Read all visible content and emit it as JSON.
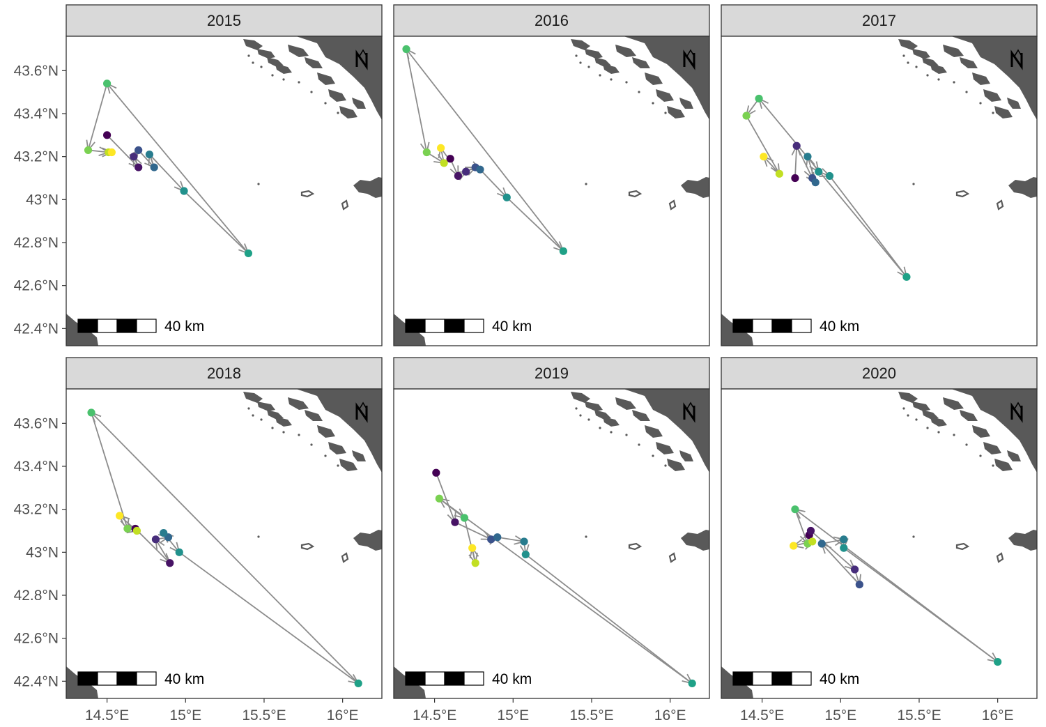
{
  "chart_data": {
    "type": "map",
    "panels": [
      {
        "year": "2015",
        "points": [
          {
            "lon": 14.5,
            "lat": 43.3,
            "color": "#440154"
          },
          {
            "lon": 14.7,
            "lat": 43.15,
            "color": "#471365"
          },
          {
            "lon": 14.67,
            "lat": 43.2,
            "color": "#472d7b"
          },
          {
            "lon": 14.7,
            "lat": 43.23,
            "color": "#3b528b"
          },
          {
            "lon": 14.8,
            "lat": 43.15,
            "color": "#31688e"
          },
          {
            "lon": 14.77,
            "lat": 43.21,
            "color": "#287c8e"
          },
          {
            "lon": 14.99,
            "lat": 43.04,
            "color": "#21918c"
          },
          {
            "lon": 15.4,
            "lat": 42.75,
            "color": "#1fa187"
          },
          {
            "lon": 14.5,
            "lat": 43.54,
            "color": "#4ac16d"
          },
          {
            "lon": 14.38,
            "lat": 43.23,
            "color": "#7ad151"
          },
          {
            "lon": 14.51,
            "lat": 43.22,
            "color": "#c2df23"
          },
          {
            "lon": 14.53,
            "lat": 43.22,
            "color": "#fde725"
          }
        ]
      },
      {
        "year": "2016",
        "points": [
          {
            "lon": 14.6,
            "lat": 43.19,
            "color": "#440154"
          },
          {
            "lon": 14.65,
            "lat": 43.11,
            "color": "#471365"
          },
          {
            "lon": 14.7,
            "lat": 43.13,
            "color": "#472d7b"
          },
          {
            "lon": 14.76,
            "lat": 43.15,
            "color": "#3b528b"
          },
          {
            "lon": 14.79,
            "lat": 43.14,
            "color": "#31688e"
          },
          {
            "lon": 14.96,
            "lat": 43.01,
            "color": "#21918c"
          },
          {
            "lon": 15.32,
            "lat": 42.76,
            "color": "#1fa187"
          },
          {
            "lon": 14.32,
            "lat": 43.7,
            "color": "#4ac16d"
          },
          {
            "lon": 14.45,
            "lat": 43.22,
            "color": "#7ad151"
          },
          {
            "lon": 14.56,
            "lat": 43.17,
            "color": "#c2df23"
          },
          {
            "lon": 14.54,
            "lat": 43.24,
            "color": "#fde725"
          }
        ]
      },
      {
        "year": "2017",
        "points": [
          {
            "lon": 14.71,
            "lat": 43.1,
            "color": "#440154"
          },
          {
            "lon": 14.72,
            "lat": 43.25,
            "color": "#472d7b"
          },
          {
            "lon": 14.82,
            "lat": 43.1,
            "color": "#3b528b"
          },
          {
            "lon": 14.84,
            "lat": 43.08,
            "color": "#31688e"
          },
          {
            "lon": 14.79,
            "lat": 43.2,
            "color": "#287c8e"
          },
          {
            "lon": 14.86,
            "lat": 43.13,
            "color": "#21918c"
          },
          {
            "lon": 14.93,
            "lat": 43.11,
            "color": "#21918c"
          },
          {
            "lon": 15.42,
            "lat": 42.64,
            "color": "#1fa187"
          },
          {
            "lon": 14.48,
            "lat": 43.47,
            "color": "#4ac16d"
          },
          {
            "lon": 14.4,
            "lat": 43.39,
            "color": "#7ad151"
          },
          {
            "lon": 14.61,
            "lat": 43.12,
            "color": "#c2df23"
          },
          {
            "lon": 14.51,
            "lat": 43.2,
            "color": "#fde725"
          }
        ]
      },
      {
        "year": "2018",
        "points": [
          {
            "lon": 14.68,
            "lat": 43.11,
            "color": "#440154"
          },
          {
            "lon": 14.9,
            "lat": 42.95,
            "color": "#471365"
          },
          {
            "lon": 14.81,
            "lat": 43.06,
            "color": "#472d7b"
          },
          {
            "lon": 14.89,
            "lat": 43.07,
            "color": "#31688e"
          },
          {
            "lon": 14.86,
            "lat": 43.09,
            "color": "#287c8e"
          },
          {
            "lon": 14.96,
            "lat": 43.0,
            "color": "#21918c"
          },
          {
            "lon": 16.1,
            "lat": 42.39,
            "color": "#1fa187"
          },
          {
            "lon": 14.4,
            "lat": 43.65,
            "color": "#4ac16d"
          },
          {
            "lon": 14.63,
            "lat": 43.11,
            "color": "#7ad151"
          },
          {
            "lon": 14.69,
            "lat": 43.1,
            "color": "#c2df23"
          },
          {
            "lon": 14.58,
            "lat": 43.17,
            "color": "#fde725"
          }
        ]
      },
      {
        "year": "2019",
        "points": [
          {
            "lon": 14.51,
            "lat": 43.37,
            "color": "#440154"
          },
          {
            "lon": 14.63,
            "lat": 43.14,
            "color": "#471365"
          },
          {
            "lon": 14.86,
            "lat": 43.06,
            "color": "#3b528b"
          },
          {
            "lon": 14.9,
            "lat": 43.07,
            "color": "#31688e"
          },
          {
            "lon": 15.07,
            "lat": 43.05,
            "color": "#287c8e"
          },
          {
            "lon": 15.08,
            "lat": 42.99,
            "color": "#21918c"
          },
          {
            "lon": 16.14,
            "lat": 42.39,
            "color": "#1fa187"
          },
          {
            "lon": 14.53,
            "lat": 43.25,
            "color": "#7ad151"
          },
          {
            "lon": 14.69,
            "lat": 43.16,
            "color": "#4ac16d"
          },
          {
            "lon": 14.76,
            "lat": 42.95,
            "color": "#c2df23"
          },
          {
            "lon": 14.74,
            "lat": 43.02,
            "color": "#fde725"
          }
        ]
      },
      {
        "year": "2020",
        "points": [
          {
            "lon": 14.8,
            "lat": 43.08,
            "color": "#440154"
          },
          {
            "lon": 14.81,
            "lat": 43.1,
            "color": "#471365"
          },
          {
            "lon": 15.09,
            "lat": 42.92,
            "color": "#472d7b"
          },
          {
            "lon": 15.12,
            "lat": 42.85,
            "color": "#3b528b"
          },
          {
            "lon": 14.88,
            "lat": 43.04,
            "color": "#31688e"
          },
          {
            "lon": 15.02,
            "lat": 43.06,
            "color": "#287c8e"
          },
          {
            "lon": 15.02,
            "lat": 43.02,
            "color": "#21918c"
          },
          {
            "lon": 16.0,
            "lat": 42.49,
            "color": "#1fa187"
          },
          {
            "lon": 14.71,
            "lat": 43.2,
            "color": "#4ac16d"
          },
          {
            "lon": 14.79,
            "lat": 43.04,
            "color": "#7ad151"
          },
          {
            "lon": 14.82,
            "lat": 43.05,
            "color": "#c2df23"
          },
          {
            "lon": 14.7,
            "lat": 43.03,
            "color": "#fde725"
          }
        ]
      }
    ],
    "x_ticks": [
      {
        "value": 14.5,
        "label": "14.5°E"
      },
      {
        "value": 15.0,
        "label": "15°E"
      },
      {
        "value": 15.5,
        "label": "15.5°E"
      },
      {
        "value": 16.0,
        "label": "16°E"
      }
    ],
    "y_ticks": [
      {
        "value": 43.6,
        "label": "43.6°N"
      },
      {
        "value": 43.4,
        "label": "43.4°N"
      },
      {
        "value": 43.2,
        "label": "43.2°N"
      },
      {
        "value": 43.0,
        "label": "43°N"
      },
      {
        "value": 42.8,
        "label": "42.8°N"
      },
      {
        "value": 42.6,
        "label": "42.6°N"
      },
      {
        "value": 42.4,
        "label": "42.4°N"
      }
    ],
    "xlim": [
      14.24,
      16.25
    ],
    "ylim": [
      42.32,
      43.76
    ],
    "scale_bar_label": "40 km",
    "north_arrow_label": "N",
    "colors": {
      "land": "#595959",
      "track": "#8c8c8c",
      "strip": "#d9d9d9",
      "panel_border": "#333333"
    }
  }
}
